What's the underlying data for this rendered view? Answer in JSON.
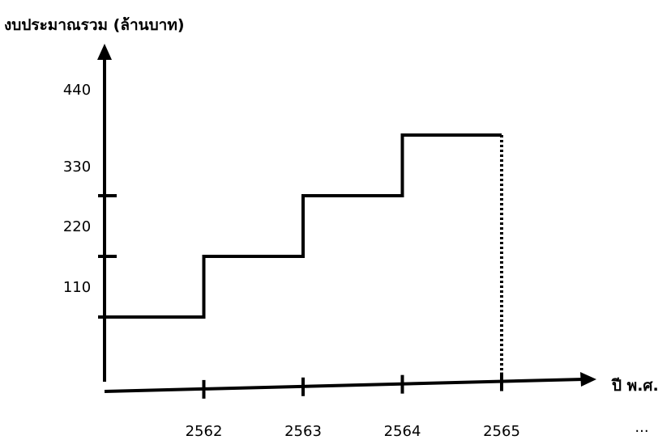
{
  "chart_data": {
    "type": "line",
    "step": "post",
    "title": "",
    "ylabel": "งบประมาณรวม (ล้านบาท)",
    "xlabel": "ปี พ.ศ.",
    "ylim": [
      0,
      440
    ],
    "yticks": [
      "110",
      "220",
      "330",
      "440"
    ],
    "xticks": [
      "2562",
      "2563",
      "2564",
      "2565",
      "..."
    ],
    "series": [
      {
        "x": [
          2561,
          2562,
          2563,
          2564,
          2565
        ],
        "y": [
          110,
          220,
          330,
          440,
          440
        ]
      }
    ],
    "projection_to_axis": {
      "x": 2565,
      "y": 440
    },
    "grid": false,
    "colors": {
      "line": "#000000",
      "axes": "#000000"
    }
  }
}
